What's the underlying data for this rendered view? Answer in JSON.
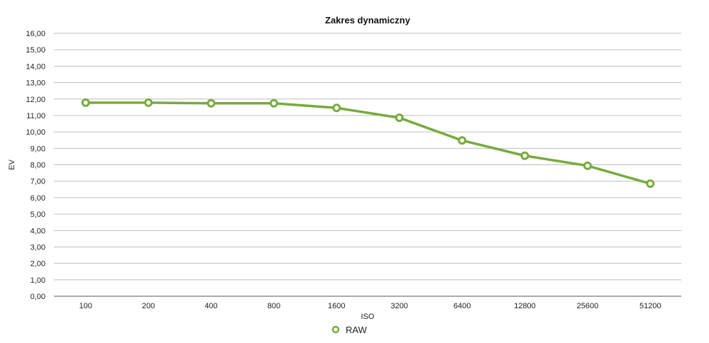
{
  "chart_data": {
    "type": "line",
    "title": "Zakres dynamiczny",
    "xlabel": "ISO",
    "ylabel": "EV",
    "categories": [
      "100",
      "200",
      "400",
      "800",
      "1600",
      "3200",
      "6400",
      "12800",
      "25600",
      "51200"
    ],
    "series": [
      {
        "name": "RAW",
        "color": "#77ab3d",
        "values": [
          11.78,
          11.78,
          11.74,
          11.74,
          11.46,
          10.86,
          9.48,
          8.55,
          7.94,
          6.85
        ]
      }
    ],
    "ylim": [
      0,
      16
    ],
    "ystep": 1,
    "y_tick_labels": [
      "0,00",
      "1,00",
      "2,00",
      "3,00",
      "4,00",
      "5,00",
      "6,00",
      "7,00",
      "8,00",
      "9,00",
      "10,00",
      "11,00",
      "12,00",
      "13,00",
      "14,00",
      "15,00",
      "16,00"
    ],
    "grid": true,
    "legend_position": "bottom-center"
  }
}
